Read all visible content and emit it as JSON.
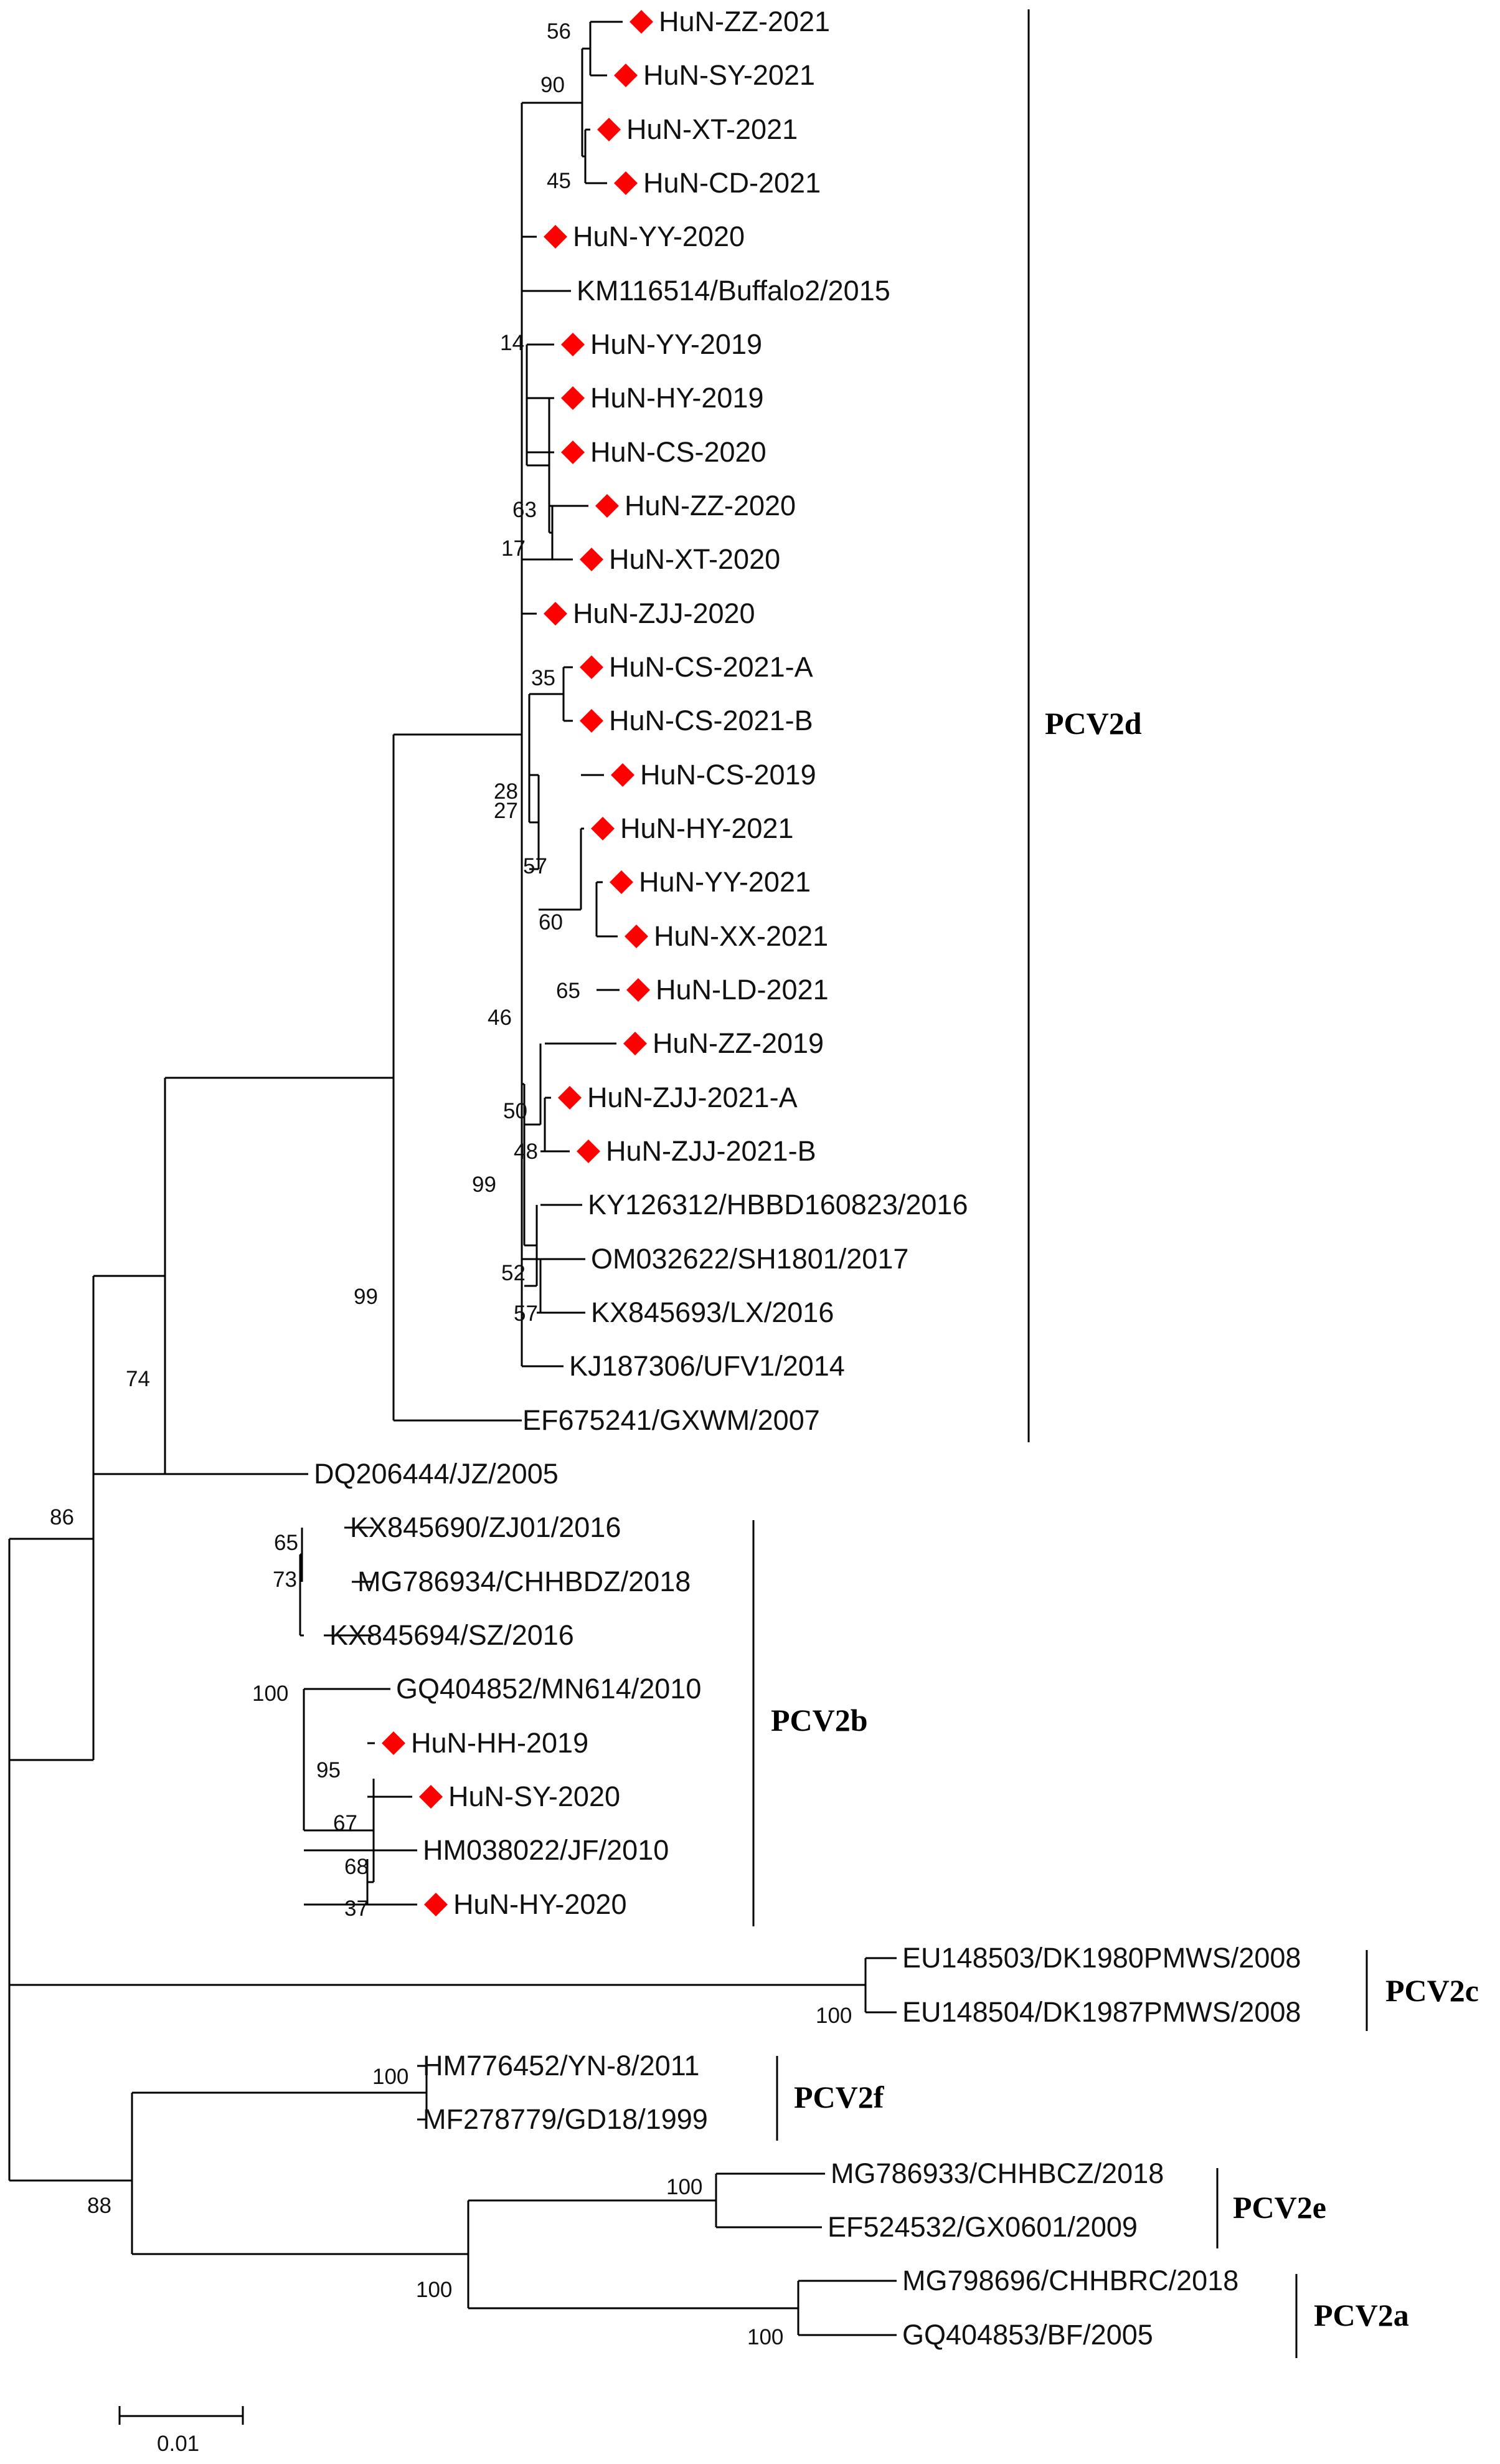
{
  "figure": {
    "type": "phylogenetic tree",
    "scale_bar_label": "0.01",
    "colors": {
      "line": "#000000",
      "marker": "#ff0000",
      "background": "#ffffff"
    }
  },
  "clades": [
    {
      "id": "PCV2d",
      "label": "PCV2d"
    },
    {
      "id": "PCV2b",
      "label": "PCV2b"
    },
    {
      "id": "PCV2c",
      "label": "PCV2c"
    },
    {
      "id": "PCV2f",
      "label": "PCV2f"
    },
    {
      "id": "PCV2e",
      "label": "PCV2e"
    },
    {
      "id": "PCV2a",
      "label": "PCV2a"
    }
  ],
  "taxa": [
    {
      "label": "HuN-ZZ-2021",
      "marker": true,
      "clade": "PCV2d"
    },
    {
      "label": "HuN-SY-2021",
      "marker": true,
      "clade": "PCV2d"
    },
    {
      "label": "HuN-XT-2021",
      "marker": true,
      "clade": "PCV2d"
    },
    {
      "label": "HuN-CD-2021",
      "marker": true,
      "clade": "PCV2d"
    },
    {
      "label": "HuN-YY-2020",
      "marker": true,
      "clade": "PCV2d"
    },
    {
      "label": "KM116514/Buffalo2/2015",
      "marker": false,
      "clade": "PCV2d"
    },
    {
      "label": "HuN-YY-2019",
      "marker": true,
      "clade": "PCV2d"
    },
    {
      "label": "HuN-HY-2019",
      "marker": true,
      "clade": "PCV2d"
    },
    {
      "label": "HuN-CS-2020",
      "marker": true,
      "clade": "PCV2d"
    },
    {
      "label": "HuN-ZZ-2020",
      "marker": true,
      "clade": "PCV2d"
    },
    {
      "label": "HuN-XT-2020",
      "marker": true,
      "clade": "PCV2d"
    },
    {
      "label": "HuN-ZJJ-2020",
      "marker": true,
      "clade": "PCV2d"
    },
    {
      "label": "HuN-CS-2021-A",
      "marker": true,
      "clade": "PCV2d"
    },
    {
      "label": "HuN-CS-2021-B",
      "marker": true,
      "clade": "PCV2d"
    },
    {
      "label": "HuN-CS-2019",
      "marker": true,
      "clade": "PCV2d"
    },
    {
      "label": "HuN-HY-2021",
      "marker": true,
      "clade": "PCV2d"
    },
    {
      "label": "HuN-YY-2021",
      "marker": true,
      "clade": "PCV2d"
    },
    {
      "label": "HuN-XX-2021",
      "marker": true,
      "clade": "PCV2d"
    },
    {
      "label": "HuN-LD-2021",
      "marker": true,
      "clade": "PCV2d"
    },
    {
      "label": "HuN-ZZ-2019",
      "marker": true,
      "clade": "PCV2d"
    },
    {
      "label": "HuN-ZJJ-2021-A",
      "marker": true,
      "clade": "PCV2d"
    },
    {
      "label": "HuN-ZJJ-2021-B",
      "marker": true,
      "clade": "PCV2d"
    },
    {
      "label": "KY126312/HBBD160823/2016",
      "marker": false,
      "clade": "PCV2d"
    },
    {
      "label": "OM032622/SH1801/2017",
      "marker": false,
      "clade": "PCV2d"
    },
    {
      "label": "KX845693/LX/2016",
      "marker": false,
      "clade": "PCV2d"
    },
    {
      "label": "KJ187306/UFV1/2014",
      "marker": false,
      "clade": "PCV2d"
    },
    {
      "label": "EF675241/GXWM/2007",
      "marker": false,
      "clade": "PCV2d"
    },
    {
      "label": "DQ206444/JZ/2005",
      "marker": false,
      "clade": ""
    },
    {
      "label": "KX845690/ZJ01/2016",
      "marker": false,
      "clade": "PCV2b"
    },
    {
      "label": "MG786934/CHHBDZ/2018",
      "marker": false,
      "clade": "PCV2b"
    },
    {
      "label": "KX845694/SZ/2016",
      "marker": false,
      "clade": "PCV2b"
    },
    {
      "label": "GQ404852/MN614/2010",
      "marker": false,
      "clade": "PCV2b"
    },
    {
      "label": "HuN-HH-2019",
      "marker": true,
      "clade": "PCV2b"
    },
    {
      "label": "HuN-SY-2020",
      "marker": true,
      "clade": "PCV2b"
    },
    {
      "label": "HM038022/JF/2010",
      "marker": false,
      "clade": "PCV2b"
    },
    {
      "label": "HuN-HY-2020",
      "marker": true,
      "clade": "PCV2b"
    },
    {
      "label": "EU148503/DK1980PMWS/2008",
      "marker": false,
      "clade": "PCV2c"
    },
    {
      "label": "EU148504/DK1987PMWS/2008",
      "marker": false,
      "clade": "PCV2c"
    },
    {
      "label": "HM776452/YN-8/2011",
      "marker": false,
      "clade": "PCV2f"
    },
    {
      "label": "MF278779/GD18/1999",
      "marker": false,
      "clade": "PCV2f"
    },
    {
      "label": "MG786933/CHHBCZ/2018",
      "marker": false,
      "clade": "PCV2e"
    },
    {
      "label": "EF524532/GX0601/2009",
      "marker": false,
      "clade": "PCV2e"
    },
    {
      "label": "MG798696/CHHBRC/2018",
      "marker": false,
      "clade": "PCV2a"
    },
    {
      "label": "GQ404853/BF/2005",
      "marker": false,
      "clade": "PCV2a"
    }
  ],
  "bootstrap": [
    "56",
    "90",
    "45",
    "14",
    "63",
    "17",
    "35",
    "28",
    "27",
    "57",
    "60",
    "65",
    "46",
    "50",
    "48",
    "99",
    "52",
    "57",
    "99",
    "74",
    "86",
    "65",
    "73",
    "100",
    "95",
    "67",
    "68",
    "37",
    "100",
    "100",
    "88",
    "100",
    "100",
    "100"
  ]
}
